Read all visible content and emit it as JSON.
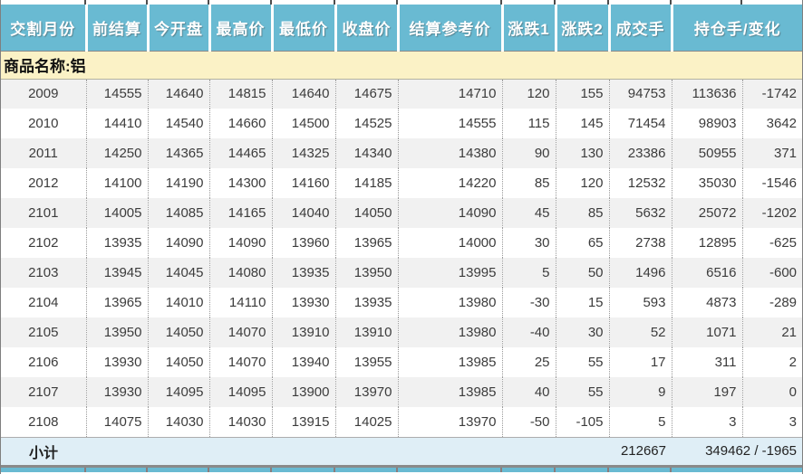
{
  "colors": {
    "header-bg": "#69BAD2",
    "band-yellow": "#FBF2C6",
    "row-alt": "#F1F1F1",
    "subtotal-bg": "#DFEEF6",
    "text-dark": "#3C3C3C"
  },
  "table": {
    "columns": [
      "交割月份",
      "前结算",
      "今开盘",
      "最高价",
      "最低价",
      "收盘价",
      "结算参考价",
      "涨跌1",
      "涨跌2",
      "成交手",
      "持仓手/变化"
    ],
    "column_keys": [
      "delivery-month",
      "prev-settlement",
      "open",
      "high",
      "low",
      "close",
      "settlement-ref",
      "change1",
      "change2",
      "volume",
      "open-interest",
      "oi-change"
    ],
    "commodity_label": "商品名称:铝",
    "rows": [
      [
        "2009",
        "14555",
        "14640",
        "14815",
        "14640",
        "14675",
        "14710",
        "120",
        "155",
        "94753",
        "113636",
        "-1742"
      ],
      [
        "2010",
        "14410",
        "14540",
        "14660",
        "14500",
        "14525",
        "14555",
        "115",
        "145",
        "71454",
        "98903",
        "3642"
      ],
      [
        "2011",
        "14250",
        "14365",
        "14465",
        "14325",
        "14340",
        "14380",
        "90",
        "130",
        "23386",
        "50955",
        "371"
      ],
      [
        "2012",
        "14100",
        "14190",
        "14300",
        "14160",
        "14185",
        "14220",
        "85",
        "120",
        "12532",
        "35030",
        "-1546"
      ],
      [
        "2101",
        "14005",
        "14085",
        "14165",
        "14040",
        "14050",
        "14090",
        "45",
        "85",
        "5632",
        "25072",
        "-1202"
      ],
      [
        "2102",
        "13935",
        "14090",
        "14090",
        "13960",
        "13965",
        "14000",
        "30",
        "65",
        "2738",
        "12895",
        "-625"
      ],
      [
        "2103",
        "13945",
        "14045",
        "14080",
        "13935",
        "13950",
        "13995",
        "5",
        "50",
        "1496",
        "6516",
        "-600"
      ],
      [
        "2104",
        "13965",
        "14010",
        "14110",
        "13930",
        "13935",
        "13980",
        "-30",
        "15",
        "593",
        "4873",
        "-289"
      ],
      [
        "2105",
        "13950",
        "14050",
        "14070",
        "13910",
        "13910",
        "13980",
        "-40",
        "30",
        "52",
        "1071",
        "21"
      ],
      [
        "2106",
        "13930",
        "14050",
        "14070",
        "13940",
        "13955",
        "13985",
        "25",
        "55",
        "17",
        "311",
        "2"
      ],
      [
        "2107",
        "13930",
        "14095",
        "14095",
        "13900",
        "13970",
        "13985",
        "40",
        "55",
        "9",
        "197",
        "0"
      ],
      [
        "2108",
        "14075",
        "14030",
        "14030",
        "13915",
        "14025",
        "13970",
        "-50",
        "-105",
        "5",
        "3",
        "3"
      ]
    ],
    "subtotal": {
      "label": "小计",
      "volume": "212667",
      "open_interest_and_change": "349462 / -1965"
    }
  }
}
